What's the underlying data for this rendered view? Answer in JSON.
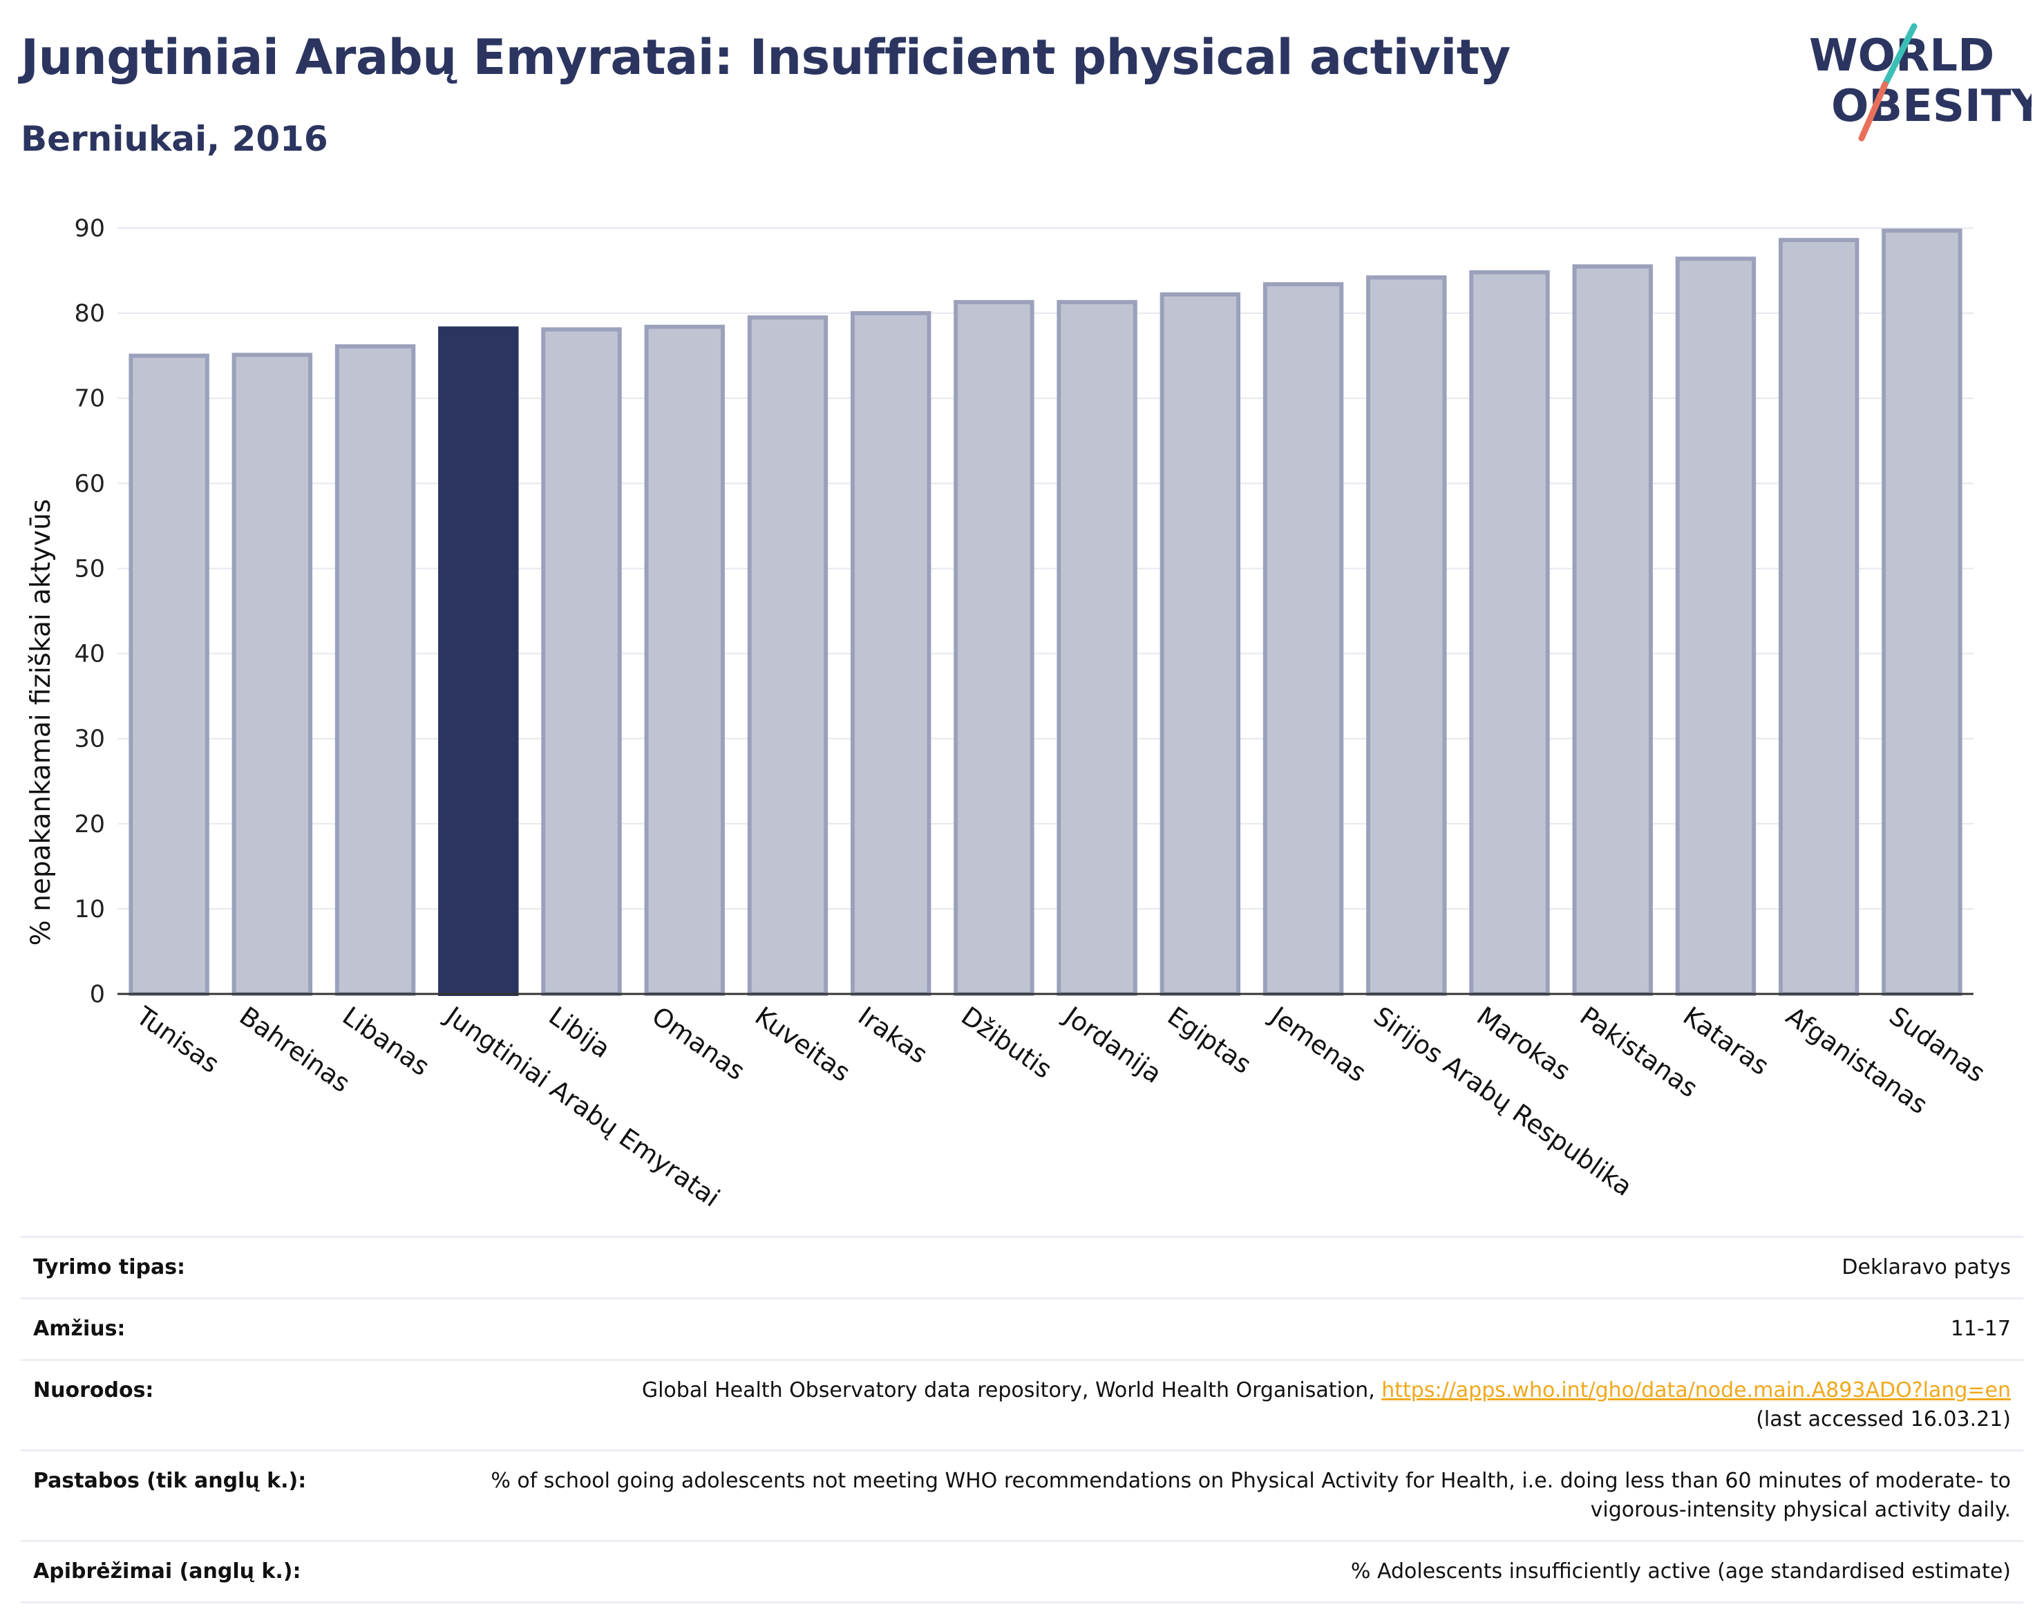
{
  "header": {
    "title": "Jungtiniai Arabų Emyratai: Insufficient physical activity",
    "subtitle": "Berniukai, 2016"
  },
  "logo": {
    "line1": "WORLD",
    "line2": "OBESITY"
  },
  "chart_data": {
    "type": "bar",
    "ylabel": "% nepakankamai fiziškai aktyvūs",
    "ylim": [
      0,
      90
    ],
    "yticks": [
      0,
      10,
      20,
      30,
      40,
      50,
      60,
      70,
      80,
      90
    ],
    "grid": true,
    "categories": [
      "Tunisas",
      "Bahreinas",
      "Libanas",
      "Jungtiniai Arabų Emyratai",
      "Libija",
      "Omanas",
      "Kuveitas",
      "Irakas",
      "Džibutis",
      "Jordanija",
      "Egiptas",
      "Jemenas",
      "Sirijos Arabų Respublika",
      "Marokas",
      "Pakistanas",
      "Kataras",
      "Afganistanas",
      "Sudanas"
    ],
    "values": [
      75.0,
      75.1,
      76.1,
      78.2,
      78.1,
      78.4,
      79.5,
      80.0,
      81.3,
      81.3,
      82.2,
      83.4,
      84.2,
      84.8,
      85.5,
      86.4,
      88.6,
      89.7
    ],
    "highlight": "Jungtiniai Arabų Emyratai",
    "colors": {
      "bar": "#c0c4d2",
      "bar_edge": "#9ba1bb",
      "highlight": "#2b3560"
    }
  },
  "info": [
    {
      "key": "Tyrimo tipas:",
      "value": "Deklaravo patys"
    },
    {
      "key": "Amžius:",
      "value": "11-17"
    },
    {
      "key": "Nuorodos:",
      "value": "Global Health Observatory data repository, World Health Organisation, ",
      "link": "https://apps.who.int/gho/data/node.main.A893ADO?lang=en",
      "value2": "(last accessed 16.03.21)"
    },
    {
      "key": "Pastabos (tik anglų k.):",
      "value": "% of school going adolescents not meeting WHO recommendations on Physical Activity for Health, i.e. doing less than 60 minutes of moderate- to vigorous-intensity physical activity daily."
    },
    {
      "key": "Apibrėžimai (anglų k.):",
      "value": "% Adolescents insufficiently active (age standardised estimate)"
    }
  ]
}
